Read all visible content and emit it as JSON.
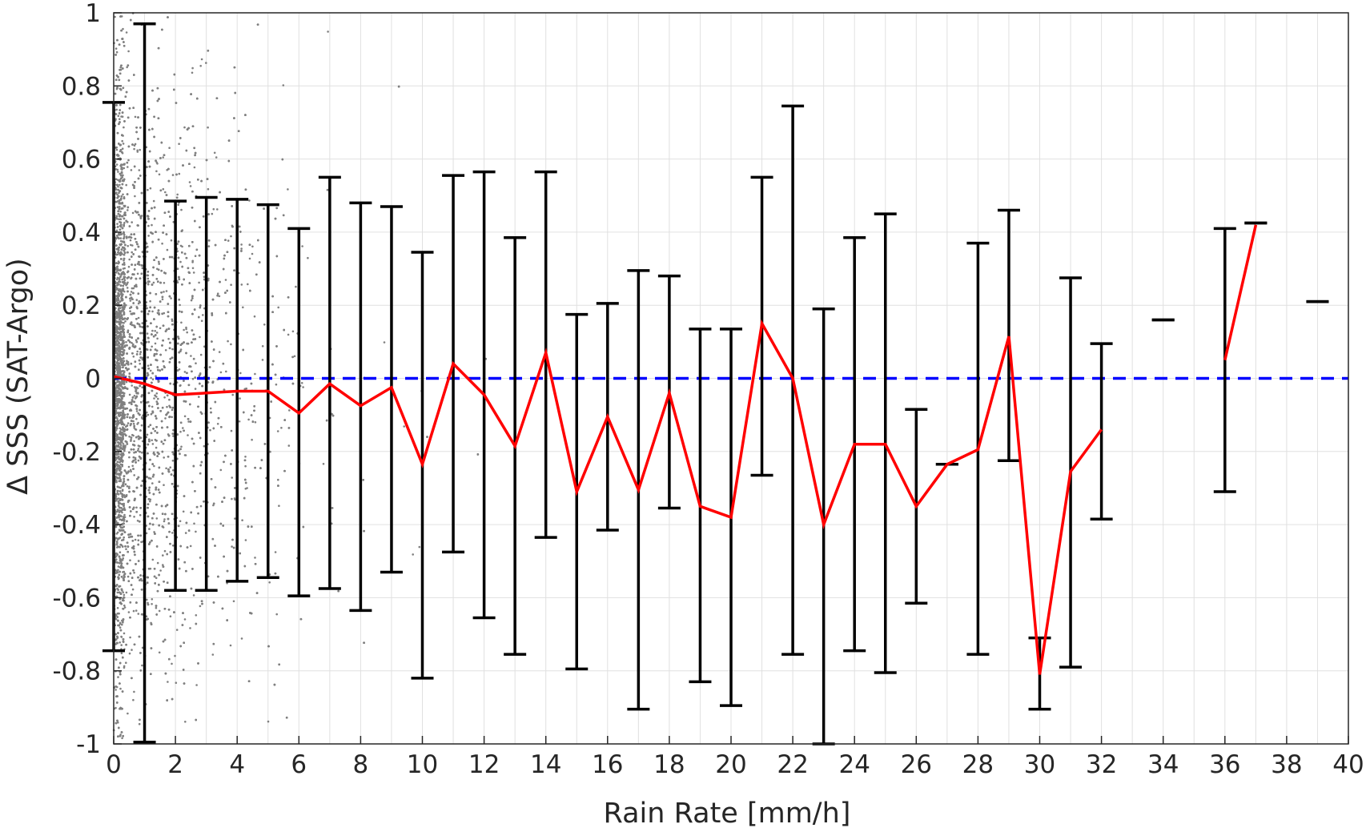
{
  "chart_data": {
    "type": "scatter",
    "xlabel": "Rain Rate [mm/h]",
    "ylabel": "Δ SSS (SAT-Argo)",
    "xlim": [
      0,
      40
    ],
    "ylim": [
      -1,
      1
    ],
    "x_ticks": [
      0,
      2,
      4,
      6,
      8,
      10,
      12,
      14,
      16,
      18,
      20,
      22,
      24,
      26,
      28,
      30,
      32,
      34,
      36,
      38,
      40
    ],
    "x_tick_labels": [
      "0",
      "2",
      "4",
      "6",
      "8",
      "10",
      "12",
      "14",
      "16",
      "18",
      "20",
      "22",
      "24",
      "26",
      "28",
      "30",
      "32",
      "34",
      "36",
      "38",
      "40"
    ],
    "y_ticks": [
      -1,
      -0.8,
      -0.6,
      -0.4,
      -0.2,
      0,
      0.2,
      0.4,
      0.6,
      0.8,
      1
    ],
    "y_tick_labels": [
      "-1",
      "-0.8",
      "-0.6",
      "-0.4",
      "-0.2",
      "0",
      "0.2",
      "0.4",
      "0.6",
      "0.8",
      "1"
    ],
    "grid": true,
    "colors": {
      "scatter": "#808080",
      "mean_line": "#ff0000",
      "error_bars": "#000000",
      "zero_line": "#0000ff",
      "grid": "#e0e0e0",
      "axes": "#262626"
    },
    "series": [
      {
        "kind": "scatter",
        "description_in_plot": "individual collocations, gray dots, dense near 0-2 mm/h and thinning with rain rate"
      },
      {
        "kind": "error_bars",
        "x": [
          0,
          1,
          2,
          3,
          4,
          5,
          6,
          7,
          8,
          9,
          10,
          11,
          12,
          13,
          14,
          15,
          16,
          17,
          18,
          19,
          20,
          21,
          22,
          23,
          24,
          25,
          26,
          27,
          28,
          29,
          30,
          31,
          32,
          34,
          36,
          37,
          39
        ],
        "upper": [
          0.755,
          0.97,
          0.485,
          0.495,
          0.49,
          0.475,
          0.41,
          0.55,
          0.48,
          0.47,
          0.345,
          0.555,
          0.565,
          0.385,
          0.565,
          0.175,
          0.205,
          0.295,
          0.28,
          0.135,
          0.135,
          0.55,
          0.745,
          0.19,
          0.385,
          0.45,
          -0.085,
          -0.235,
          0.37,
          0.46,
          -0.71,
          0.275,
          0.095,
          0.16,
          0.41,
          0.425,
          0.21
        ],
        "lower": [
          -0.745,
          -0.995,
          -0.58,
          -0.58,
          -0.555,
          -0.545,
          -0.595,
          -0.575,
          -0.635,
          -0.53,
          -0.82,
          -0.475,
          -0.655,
          -0.755,
          -0.435,
          -0.795,
          -0.415,
          -0.905,
          -0.355,
          -0.83,
          -0.895,
          -0.265,
          -0.755,
          -1.0,
          -0.745,
          -0.805,
          -0.615,
          -0.235,
          -0.755,
          -0.225,
          -0.905,
          -0.79,
          -0.385,
          0.16,
          -0.31,
          0.425,
          0.21
        ]
      },
      {
        "kind": "line",
        "x": [
          0,
          1,
          2,
          3,
          4,
          5,
          6,
          7,
          8,
          9,
          10,
          11,
          12,
          13,
          14,
          15,
          16,
          17,
          18,
          19,
          20,
          21,
          22,
          23,
          24,
          25,
          26,
          27,
          28,
          29,
          30,
          31,
          32
        ],
        "y": [
          0.005,
          -0.015,
          -0.045,
          -0.04,
          -0.035,
          -0.035,
          -0.095,
          -0.015,
          -0.075,
          -0.025,
          -0.235,
          0.04,
          -0.045,
          -0.185,
          0.07,
          -0.31,
          -0.105,
          -0.305,
          -0.04,
          -0.35,
          -0.38,
          0.15,
          0.0,
          -0.4,
          -0.18,
          -0.18,
          -0.35,
          -0.235,
          -0.195,
          0.115,
          -0.81,
          -0.255,
          -0.14
        ]
      },
      {
        "kind": "line",
        "x": [
          36,
          37
        ],
        "y": [
          0.05,
          0.42
        ]
      },
      {
        "kind": "reference_line",
        "style": "dashed",
        "y": 0
      }
    ]
  }
}
